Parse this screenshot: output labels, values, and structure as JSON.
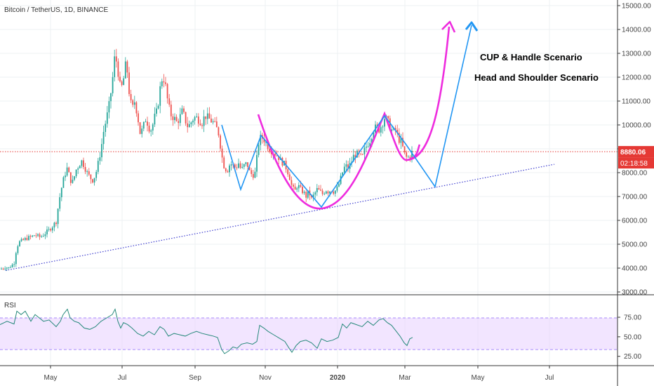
{
  "chart_data": {
    "type": "candlestick",
    "title": "Bitcoin / TetherUS, 1D, BINANCE",
    "colors": {
      "up": "#26a69a",
      "down": "#ef5350",
      "cup": "#ee2cde",
      "hs": "#2196f3",
      "trend": "#3f3fcf",
      "price_line": "#e53935",
      "rsi": "#26897b",
      "rsi_band": "#e9d4ff",
      "rsi_band_border": "#a78bfa"
    },
    "x_axis": {
      "ticks": [
        "May",
        "Jul",
        "Sep",
        "Nov",
        "2020",
        "Mar",
        "May",
        "Jul"
      ]
    },
    "y_axis": {
      "ticks": [
        "15000.00",
        "14000.00",
        "13000.00",
        "12000.00",
        "11000.00",
        "10000.00",
        "9000.00",
        "8000.00",
        "7000.00",
        "6000.00",
        "5000.00",
        "4000.00",
        "3000.00"
      ],
      "range": [
        3000,
        15000
      ]
    },
    "last_price": {
      "value": "8880.06",
      "countdown": "02:18:58"
    },
    "annotations": [
      {
        "text": "CUP & Handle Scenario",
        "color": "#ee2cde"
      },
      {
        "text": "Head and Shoulder Scenario",
        "color": "#2196f3"
      }
    ],
    "price_path": [
      [
        0,
        3950
      ],
      [
        8,
        4050
      ],
      [
        12,
        4000
      ],
      [
        16,
        4100
      ],
      [
        20,
        4200
      ],
      [
        24,
        4900
      ],
      [
        28,
        5100
      ],
      [
        32,
        5150
      ],
      [
        38,
        5250
      ],
      [
        44,
        5300
      ],
      [
        50,
        5400
      ],
      [
        56,
        5300
      ],
      [
        60,
        5350
      ],
      [
        64,
        5450
      ],
      [
        70,
        5600
      ],
      [
        76,
        5800
      ],
      [
        80,
        5950
      ],
      [
        84,
        6800
      ],
      [
        88,
        7400
      ],
      [
        92,
        7900
      ],
      [
        96,
        8200
      ],
      [
        100,
        7700
      ],
      [
        104,
        7600
      ],
      [
        108,
        8100
      ],
      [
        112,
        8300
      ],
      [
        116,
        8500
      ],
      [
        120,
        8300
      ],
      [
        124,
        8000
      ],
      [
        128,
        7800
      ],
      [
        132,
        7700
      ],
      [
        136,
        7900
      ],
      [
        140,
        8400
      ],
      [
        144,
        9000
      ],
      [
        148,
        9800
      ],
      [
        152,
        10300
      ],
      [
        156,
        10900
      ],
      [
        160,
        11800
      ],
      [
        164,
        13000
      ],
      [
        168,
        12300
      ],
      [
        172,
        11400
      ],
      [
        176,
        11900
      ],
      [
        180,
        12700
      ],
      [
        184,
        11400
      ],
      [
        188,
        10600
      ],
      [
        192,
        11000
      ],
      [
        196,
        10400
      ],
      [
        200,
        9600
      ],
      [
        204,
        9900
      ],
      [
        208,
        10300
      ],
      [
        212,
        9900
      ],
      [
        216,
        9800
      ],
      [
        220,
        10300
      ],
      [
        224,
        10600
      ],
      [
        228,
        11500
      ],
      [
        232,
        12100
      ],
      [
        236,
        11600
      ],
      [
        240,
        10800
      ],
      [
        244,
        10400
      ],
      [
        248,
        10300
      ],
      [
        252,
        10100
      ],
      [
        256,
        10300
      ],
      [
        260,
        10600
      ],
      [
        264,
        10200
      ],
      [
        268,
        9900
      ],
      [
        272,
        10100
      ],
      [
        276,
        10300
      ],
      [
        280,
        10300
      ],
      [
        284,
        10200
      ],
      [
        288,
        10100
      ],
      [
        292,
        10400
      ],
      [
        296,
        10300
      ],
      [
        300,
        10200
      ],
      [
        304,
        10100
      ],
      [
        308,
        9900
      ],
      [
        312,
        9600
      ],
      [
        316,
        8700
      ],
      [
        320,
        8200
      ],
      [
        324,
        8100
      ],
      [
        328,
        8400
      ],
      [
        332,
        8300
      ],
      [
        336,
        8200
      ],
      [
        340,
        8400
      ],
      [
        344,
        8100
      ],
      [
        348,
        8300
      ],
      [
        352,
        8400
      ],
      [
        356,
        8000
      ],
      [
        360,
        7900
      ],
      [
        364,
        8000
      ],
      [
        368,
        9200
      ],
      [
        372,
        9500
      ],
      [
        376,
        9400
      ],
      [
        380,
        9200
      ],
      [
        384,
        9000
      ],
      [
        388,
        8900
      ],
      [
        392,
        8800
      ],
      [
        396,
        8700
      ],
      [
        400,
        8500
      ],
      [
        404,
        8400
      ],
      [
        408,
        8200
      ],
      [
        412,
        7900
      ],
      [
        416,
        7400
      ],
      [
        420,
        7200
      ],
      [
        424,
        7500
      ],
      [
        428,
        7300
      ],
      [
        432,
        7200
      ],
      [
        436,
        7000
      ],
      [
        440,
        7200
      ],
      [
        444,
        6900
      ],
      [
        448,
        7100
      ],
      [
        452,
        7300
      ],
      [
        456,
        7200
      ],
      [
        460,
        7100
      ],
      [
        464,
        7300
      ],
      [
        468,
        7200
      ],
      [
        472,
        7300
      ],
      [
        476,
        7200
      ],
      [
        480,
        7300
      ],
      [
        484,
        7600
      ],
      [
        488,
        8000
      ],
      [
        492,
        8300
      ],
      [
        496,
        8200
      ],
      [
        500,
        8400
      ],
      [
        504,
        8700
      ],
      [
        508,
        8800
      ],
      [
        512,
        8700
      ],
      [
        516,
        8600
      ],
      [
        520,
        9000
      ],
      [
        524,
        9200
      ],
      [
        528,
        9400
      ],
      [
        532,
        9800
      ],
      [
        536,
        9900
      ],
      [
        540,
        9800
      ],
      [
        544,
        10000
      ],
      [
        548,
        10300
      ],
      [
        552,
        10200
      ],
      [
        556,
        9900
      ],
      [
        560,
        9700
      ],
      [
        564,
        9800
      ],
      [
        568,
        9400
      ],
      [
        572,
        9300
      ],
      [
        576,
        8800
      ],
      [
        580,
        8600
      ],
      [
        584,
        8700
      ],
      [
        588,
        8900
      ]
    ],
    "rsi": {
      "label": "RSI",
      "levels": [
        "75.00",
        "50.00",
        "25.00"
      ],
      "band": [
        30,
        70
      ],
      "series": [
        [
          0,
          65
        ],
        [
          10,
          70
        ],
        [
          20,
          66
        ],
        [
          24,
          85
        ],
        [
          30,
          80
        ],
        [
          36,
          85
        ],
        [
          44,
          70
        ],
        [
          50,
          80
        ],
        [
          56,
          75
        ],
        [
          62,
          70
        ],
        [
          70,
          72
        ],
        [
          80,
          62
        ],
        [
          86,
          70
        ],
        [
          90,
          80
        ],
        [
          96,
          88
        ],
        [
          100,
          75
        ],
        [
          106,
          70
        ],
        [
          112,
          68
        ],
        [
          120,
          60
        ],
        [
          128,
          58
        ],
        [
          136,
          62
        ],
        [
          144,
          70
        ],
        [
          152,
          75
        ],
        [
          160,
          80
        ],
        [
          164,
          88
        ],
        [
          168,
          70
        ],
        [
          172,
          60
        ],
        [
          176,
          68
        ],
        [
          182,
          65
        ],
        [
          188,
          60
        ],
        [
          196,
          52
        ],
        [
          204,
          48
        ],
        [
          212,
          55
        ],
        [
          220,
          50
        ],
        [
          228,
          62
        ],
        [
          234,
          58
        ],
        [
          240,
          48
        ],
        [
          248,
          52
        ],
        [
          256,
          50
        ],
        [
          264,
          48
        ],
        [
          272,
          52
        ],
        [
          280,
          55
        ],
        [
          288,
          52
        ],
        [
          296,
          50
        ],
        [
          304,
          48
        ],
        [
          310,
          46
        ],
        [
          316,
          28
        ],
        [
          320,
          22
        ],
        [
          326,
          26
        ],
        [
          332,
          32
        ],
        [
          338,
          30
        ],
        [
          344,
          36
        ],
        [
          352,
          38
        ],
        [
          360,
          36
        ],
        [
          366,
          40
        ],
        [
          370,
          64
        ],
        [
          376,
          60
        ],
        [
          382,
          55
        ],
        [
          390,
          50
        ],
        [
          398,
          45
        ],
        [
          406,
          40
        ],
        [
          412,
          30
        ],
        [
          416,
          24
        ],
        [
          422,
          34
        ],
        [
          428,
          40
        ],
        [
          436,
          42
        ],
        [
          444,
          38
        ],
        [
          452,
          30
        ],
        [
          458,
          44
        ],
        [
          466,
          40
        ],
        [
          474,
          42
        ],
        [
          482,
          46
        ],
        [
          488,
          66
        ],
        [
          494,
          60
        ],
        [
          500,
          68
        ],
        [
          508,
          65
        ],
        [
          516,
          62
        ],
        [
          524,
          70
        ],
        [
          532,
          64
        ],
        [
          540,
          72
        ],
        [
          546,
          74
        ],
        [
          552,
          68
        ],
        [
          558,
          64
        ],
        [
          564,
          56
        ],
        [
          570,
          48
        ],
        [
          576,
          38
        ],
        [
          580,
          34
        ],
        [
          584,
          44
        ],
        [
          588,
          46
        ]
      ]
    }
  }
}
